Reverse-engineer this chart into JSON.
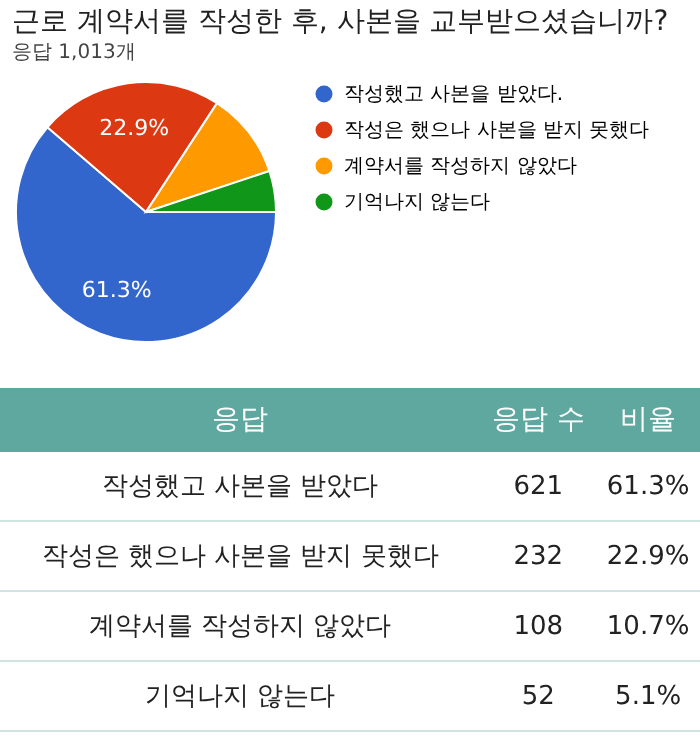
{
  "chart_data": {
    "type": "pie",
    "title": "근로 계약서를 작성한 후, 사본을 교부받으셨습니까?",
    "subtitle": "응답 1,013개",
    "categories": [
      "작성했고 사본을 받았다.",
      "작성은 했으나 사본을 받지 못했다",
      "계약서를 작성하지 않았다",
      "기억나지 않는다"
    ],
    "values": [
      61.3,
      22.9,
      10.7,
      5.1
    ],
    "colors": [
      "#3366cc",
      "#dc3912",
      "#ff9900",
      "#109618"
    ],
    "value_labels": [
      "61.3%",
      "22.9%",
      null,
      null
    ],
    "legend": "right",
    "annotations": [
      "응답",
      "응답 수",
      "비율",
      "작성했고 사본을 받았다",
      "작성은 했으나 사본을 받지 못했다",
      "계약서를 작성하지 않았다",
      "기억나지 않는다",
      "621",
      "232",
      "108",
      "52",
      "61.3%",
      "22.9%",
      "10.7%",
      "5.1%"
    ]
  }
}
